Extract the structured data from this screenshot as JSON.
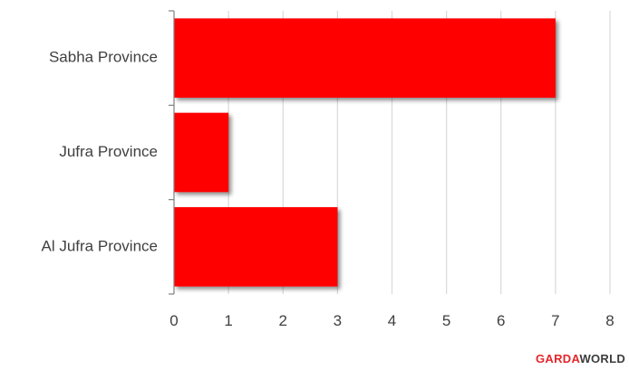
{
  "chart_data": {
    "type": "bar",
    "orientation": "horizontal",
    "categories": [
      "Sabha Province",
      "Jufra Province",
      "Al Jufra Province"
    ],
    "values": [
      7,
      1,
      3
    ],
    "xlim": [
      0,
      8
    ],
    "xticks": [
      "0",
      "1",
      "2",
      "3",
      "4",
      "5",
      "6",
      "7",
      "8"
    ],
    "grid": true,
    "bar_color": "#ff0000",
    "title": "",
    "xlabel": "",
    "ylabel": ""
  },
  "brand": {
    "part1": "GARDA",
    "part2": "WORLD"
  }
}
